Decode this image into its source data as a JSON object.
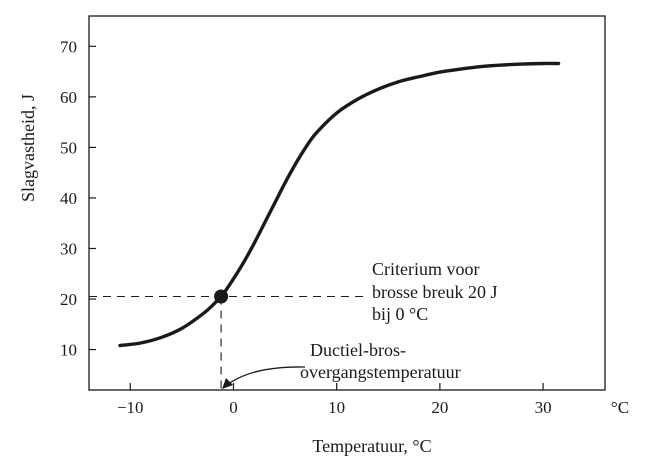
{
  "chart_data": {
    "type": "line",
    "title": "",
    "xlabel": "Temperatuur, °C",
    "ylabel": "Slagvastheid, J",
    "x_unit_label": "°C",
    "xlim": [
      -14,
      36
    ],
    "ylim": [
      2,
      76
    ],
    "x_ticks": [
      -10,
      0,
      10,
      20,
      30
    ],
    "x_tick_labels": [
      "−10",
      "0",
      "10",
      "20",
      "30"
    ],
    "y_ticks": [
      10,
      20,
      30,
      40,
      50,
      60,
      70
    ],
    "y_tick_labels": [
      "10",
      "20",
      "30",
      "40",
      "50",
      "60",
      "70"
    ],
    "grid": false,
    "series": [
      {
        "name": "",
        "x": [
          -11,
          -9,
          -7,
          -5,
          -3,
          -2,
          -1,
          0,
          1,
          2,
          3,
          4,
          5,
          6,
          7,
          8,
          10,
          12,
          14,
          16,
          18,
          20,
          22,
          24,
          26,
          28,
          30,
          31.5
        ],
        "y": [
          10.8,
          11.3,
          12.4,
          14.2,
          17.0,
          18.8,
          21.0,
          24.0,
          27.3,
          31.0,
          35.0,
          39.0,
          43.0,
          46.7,
          50.0,
          52.8,
          56.8,
          59.5,
          61.5,
          63.0,
          64.0,
          64.9,
          65.5,
          66.0,
          66.3,
          66.5,
          66.6,
          66.6
        ]
      }
    ],
    "markers": [
      {
        "x": -1.2,
        "y": 20.5
      }
    ],
    "annotations": {
      "criterion_lines": [
        "Criterium voor",
        "brosse breuk  20 J",
        "bij 0 °C"
      ],
      "transition_lines": [
        "Ductiel-bros-",
        "overgangstemperatuur"
      ]
    },
    "reference_lines": {
      "x": -1.2,
      "y": 20.5
    }
  }
}
